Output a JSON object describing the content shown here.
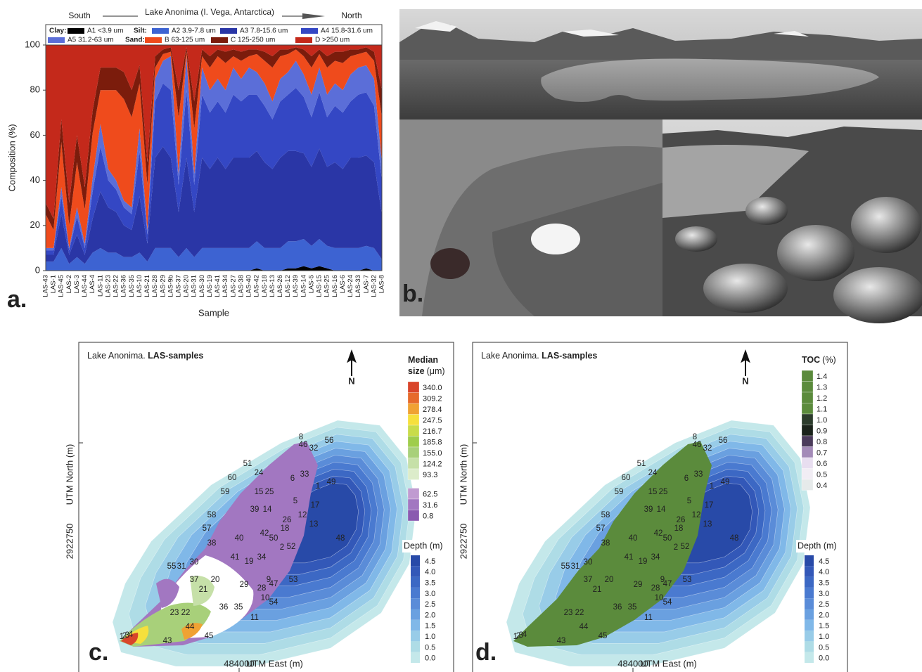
{
  "panel_labels": [
    "a.",
    "b.",
    "c.",
    "d."
  ],
  "chart_data": {
    "type": "area",
    "stacked": true,
    "header": {
      "south": "South",
      "title": "Lake Anonima (I. Vega, Antarctica)",
      "north": "North"
    },
    "ylabel": "Composition (%)",
    "xlabel": "Sample",
    "legend_groups": [
      "Clay:",
      "Silt:",
      "Sand:"
    ],
    "categories": [
      "LAS-43",
      "LAS-1",
      "LAS-45",
      "LAS-2",
      "LAS-3",
      "LAS-44",
      "LAS-4",
      "LAS-11",
      "LAS-23",
      "LAS-22",
      "LAS-36",
      "LAS-35",
      "LAS-10",
      "LAS-21",
      "LAS-28",
      "LAS-29",
      "LAS-9b",
      "LAS-37",
      "LAS-20",
      "LAS-31",
      "LAS-30",
      "LAS-19",
      "LAS-41",
      "LAS-34",
      "LAS-27",
      "LAS-38",
      "LAS-40",
      "LAS-42",
      "LAS-18",
      "LAS-13",
      "LAS-26",
      "LAS-12",
      "LAS-39",
      "LAS-14",
      "LAS-5",
      "LAS-15",
      "LAS-25",
      "LAS-16",
      "LAS-6",
      "LAS-24",
      "LAS-33",
      "LAS-7",
      "LAS-32",
      "LAS-8"
    ],
    "series": [
      {
        "name": "A1 <3.9 um",
        "color": "#000000",
        "values": [
          0,
          0,
          0,
          0,
          0,
          0,
          0,
          0,
          0,
          0,
          0,
          0,
          0,
          0,
          0,
          0,
          0,
          0,
          0,
          0,
          0,
          0,
          0,
          0,
          0,
          0,
          0,
          1,
          0,
          0,
          0,
          1,
          1,
          2,
          1,
          2,
          1,
          0,
          0,
          0,
          0,
          1,
          0,
          0
        ]
      },
      {
        "name": "A2 3.9-7.8 um",
        "color": "#3d63d2",
        "values": [
          4,
          4,
          10,
          3,
          6,
          3,
          8,
          10,
          8,
          8,
          6,
          6,
          8,
          4,
          10,
          10,
          10,
          6,
          10,
          6,
          10,
          10,
          10,
          10,
          10,
          10,
          10,
          12,
          10,
          10,
          10,
          12,
          12,
          12,
          10,
          12,
          10,
          10,
          10,
          10,
          10,
          10,
          10,
          5
        ]
      },
      {
        "name": "A3 7.8-15.6 um",
        "color": "#2a36a6",
        "values": [
          3,
          3,
          15,
          4,
          10,
          4,
          15,
          25,
          20,
          18,
          14,
          12,
          25,
          8,
          40,
          45,
          40,
          20,
          40,
          20,
          40,
          35,
          40,
          35,
          40,
          40,
          40,
          40,
          38,
          35,
          40,
          40,
          40,
          38,
          35,
          40,
          35,
          38,
          35,
          40,
          40,
          40,
          38,
          20
        ]
      },
      {
        "name": "A4 15.8-31.6 um",
        "color": "#3447c4",
        "values": [
          2,
          2,
          8,
          2,
          8,
          3,
          12,
          20,
          12,
          10,
          8,
          7,
          20,
          4,
          25,
          28,
          30,
          12,
          30,
          12,
          28,
          25,
          25,
          25,
          28,
          25,
          28,
          25,
          25,
          22,
          25,
          25,
          28,
          25,
          22,
          25,
          22,
          25,
          25,
          25,
          28,
          28,
          25,
          15
        ]
      },
      {
        "name": "A5 31.2-63 um",
        "color": "#5b6ed8",
        "values": [
          1,
          1,
          4,
          1,
          4,
          2,
          6,
          10,
          5,
          4,
          3,
          3,
          10,
          2,
          10,
          10,
          15,
          5,
          15,
          5,
          12,
          10,
          10,
          10,
          12,
          10,
          12,
          10,
          10,
          8,
          10,
          10,
          12,
          10,
          10,
          11,
          10,
          10,
          10,
          12,
          12,
          12,
          12,
          8
        ]
      },
      {
        "name": "B 63-125 um",
        "color": "#ef4b1c",
        "values": [
          15,
          8,
          20,
          10,
          20,
          15,
          20,
          15,
          35,
          40,
          45,
          40,
          20,
          20,
          5,
          3,
          2,
          25,
          2,
          20,
          5,
          10,
          10,
          12,
          5,
          8,
          5,
          8,
          10,
          15,
          10,
          8,
          5,
          8,
          12,
          6,
          12,
          10,
          12,
          8,
          6,
          6,
          8,
          20
        ]
      },
      {
        "name": "C 125-250 um",
        "color": "#7b1c0c",
        "values": [
          5,
          5,
          10,
          10,
          12,
          10,
          10,
          10,
          10,
          10,
          12,
          12,
          8,
          10,
          5,
          2,
          2,
          12,
          2,
          12,
          3,
          5,
          3,
          5,
          3,
          4,
          3,
          2,
          4,
          5,
          3,
          2,
          1,
          3,
          5,
          2,
          5,
          4,
          5,
          3,
          2,
          2,
          4,
          12
        ]
      },
      {
        "name": "D >250 um",
        "color": "#c4291b",
        "values": [
          70,
          77,
          33,
          70,
          40,
          63,
          29,
          10,
          10,
          10,
          12,
          20,
          9,
          52,
          5,
          2,
          1,
          20,
          1,
          25,
          2,
          5,
          2,
          3,
          2,
          3,
          2,
          2,
          3,
          5,
          2,
          2,
          1,
          2,
          5,
          2,
          5,
          3,
          3,
          2,
          2,
          1,
          3,
          20
        ]
      }
    ],
    "ylim": [
      0,
      100
    ],
    "yticks": [
      0,
      20,
      40,
      60,
      80,
      100
    ]
  },
  "sample_labels": [
    "8",
    "46",
    "32",
    "56",
    "51",
    "24",
    "60",
    "6",
    "33",
    "49",
    "59",
    "15",
    "25",
    "1",
    "5",
    "17",
    "39",
    "14",
    "12",
    "58",
    "13",
    "26",
    "18",
    "42",
    "57",
    "50",
    "2",
    "52",
    "48",
    "38",
    "40",
    "41",
    "19",
    "34",
    "55",
    "31",
    "30",
    "53",
    "9",
    "29",
    "28",
    "47",
    "37",
    "20",
    "21",
    "10",
    "54",
    "36",
    "35",
    "23",
    "22",
    "11",
    "44",
    "45",
    "43",
    "1",
    "2",
    "3",
    "4"
  ],
  "maps": [
    {
      "title_plain": "Lake Anonima. ",
      "title_bold": "LAS-samples",
      "north": "N",
      "xlabel": "UTM East (m)",
      "ylabel": "UTM North (m)",
      "xticks": [
        484000
      ],
      "yticks": [
        2922750
      ],
      "legend": {
        "title_bold": [
          "Median",
          "size"
        ],
        "title_unit": "(μm)",
        "ticks": [
          {
            "value": 340,
            "label": "340.0"
          },
          309.2,
          278.4,
          247.5,
          216.7,
          185.8,
          {
            "value": 155,
            "label": "155.0"
          },
          124.2,
          93.3,
          62.5,
          31.6,
          0.8
        ],
        "colors": [
          "#d9452a",
          "#e66a2b",
          "#f0a233",
          "#f6e03c",
          "#c9dc4a",
          "#9fcd4c",
          "#a8d07a",
          "#c6e0a8",
          "#dcecca",
          "#c09bd1",
          "#a277c1",
          "#8a5ab0"
        ]
      },
      "depth_legend": {
        "title": "Depth (m)",
        "ticks": [
          4.5,
          {
            "value": 4,
            "label": "4.0"
          },
          3.5,
          {
            "value": 3,
            "label": "3.0"
          },
          2.5,
          {
            "value": 2,
            "label": "2.0"
          },
          1.5,
          {
            "value": 1,
            "label": "1.0"
          },
          0.5,
          {
            "value": 0,
            "label": "0.0"
          }
        ],
        "colors": [
          "#284aa8",
          "#3358b8",
          "#3c68c4",
          "#4a7ad0",
          "#5a8cd8",
          "#6aa0e0",
          "#80b8e8",
          "#98cce8",
          "#aedce6",
          "#c4e8ea"
        ]
      }
    },
    {
      "title_plain": "Lake Anonima. ",
      "title_bold": "LAS-samples",
      "north": "N",
      "xlabel": "UTM East (m)",
      "ylabel": "UTM North (m)",
      "xticks": [
        484000
      ],
      "yticks": [
        2922750
      ],
      "legend": {
        "title_bold": [
          "TOC"
        ],
        "title_unit": "(%)",
        "ticks": [
          1.4,
          1.3,
          1.2,
          1.1,
          {
            "value": 1,
            "label": "1.0"
          },
          0.9,
          0.8,
          0.7,
          0.6,
          0.5,
          0.4
        ],
        "colors": [
          "#5b8b3c",
          "#5b8b3c",
          "#5b8b3c",
          "#5b8b3c",
          "#2c3c2c",
          "#1b231b",
          "#4b3b5b",
          "#a48bb8",
          "#e8def0",
          "#f1edf4",
          "#e6eaea"
        ]
      },
      "depth_legend": {
        "title": "Depth (m)",
        "ticks": [
          4.5,
          {
            "value": 4,
            "label": "4.0"
          },
          3.5,
          {
            "value": 3,
            "label": "3.0"
          },
          2.5,
          {
            "value": 2,
            "label": "2.0"
          },
          1.5,
          {
            "value": 1,
            "label": "1.0"
          },
          0.5,
          {
            "value": 0,
            "label": "0.0"
          }
        ],
        "colors": [
          "#284aa8",
          "#3358b8",
          "#3c68c4",
          "#4a7ad0",
          "#5a8cd8",
          "#6aa0e0",
          "#80b8e8",
          "#98cce8",
          "#aedce6",
          "#c4e8ea"
        ]
      }
    }
  ]
}
